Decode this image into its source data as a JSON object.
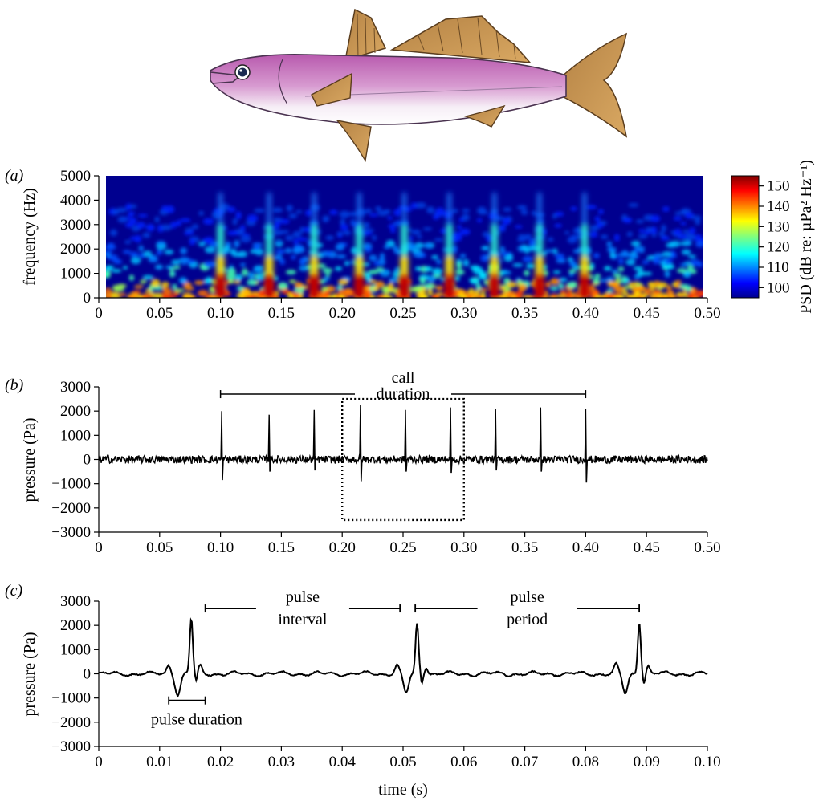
{
  "chart_data": [
    {
      "panel": "(a)",
      "type": "heatmap",
      "ylabel": "frequency (Hz)",
      "xlim": [
        0,
        0.5
      ],
      "ylim": [
        0,
        5000
      ],
      "x_ticks": [
        "0",
        "0.05",
        "0.10",
        "0.15",
        "0.20",
        "0.25",
        "0.30",
        "0.35",
        "0.40",
        "0.45",
        "0.50"
      ],
      "y_ticks": [
        "0",
        "1000",
        "2000",
        "3000",
        "4000",
        "5000"
      ],
      "pulse_times": [
        0.1,
        0.14,
        0.177,
        0.214,
        0.251,
        0.288,
        0.325,
        0.362,
        0.399
      ],
      "colorbar": {
        "label": "PSD (dB re: µPa² Hz⁻¹)",
        "range": [
          95,
          155
        ],
        "ticks": [
          "100",
          "110",
          "120",
          "130",
          "140",
          "150"
        ]
      }
    },
    {
      "panel": "(b)",
      "type": "line",
      "ylabel": "pressure (Pa)",
      "xlim": [
        0,
        0.5
      ],
      "ylim": [
        -3000,
        3000
      ],
      "x_ticks": [
        "0",
        "0.05",
        "0.10",
        "0.15",
        "0.20",
        "0.25",
        "0.30",
        "0.35",
        "0.40",
        "0.45",
        "0.50"
      ],
      "y_ticks": [
        "3000",
        "2000",
        "1000",
        "0",
        "−1000",
        "−2000",
        "−3000"
      ],
      "pulses": [
        {
          "t": 0.101,
          "peak": 2000,
          "trough": -850
        },
        {
          "t": 0.14,
          "peak": 1850,
          "trough": -500
        },
        {
          "t": 0.177,
          "peak": 2050,
          "trough": -450
        },
        {
          "t": 0.215,
          "peak": 2250,
          "trough": -900
        },
        {
          "t": 0.252,
          "peak": 2050,
          "trough": -500
        },
        {
          "t": 0.289,
          "peak": 2150,
          "trough": -550
        },
        {
          "t": 0.326,
          "peak": 2100,
          "trough": -450
        },
        {
          "t": 0.363,
          "peak": 2150,
          "trough": -500
        },
        {
          "t": 0.4,
          "peak": 2100,
          "trough": -950
        }
      ],
      "call_duration": {
        "label_line1": "call",
        "label_line2": "duration",
        "start": 0.1,
        "end": 0.4,
        "y": 2700
      },
      "zoom_box": {
        "x0": 0.2,
        "x1": 0.3,
        "y0": -2500,
        "y1": 2500
      }
    },
    {
      "panel": "(c)",
      "type": "line",
      "xlabel": "time (s)",
      "ylabel": "pressure (Pa)",
      "xlim": [
        0,
        0.1
      ],
      "ylim": [
        -3000,
        3000
      ],
      "x_ticks": [
        "0",
        "0.01",
        "0.02",
        "0.03",
        "0.04",
        "0.05",
        "0.06",
        "0.07",
        "0.08",
        "0.09",
        "0.10"
      ],
      "y_ticks": [
        "3000",
        "2000",
        "1000",
        "0",
        "−1000",
        "−2000",
        "−3000"
      ],
      "pulses": [
        {
          "t": 0.0152,
          "peak": 2250,
          "trough": -850,
          "trough_t": 0.013
        },
        {
          "t": 0.0523,
          "peak": 2050,
          "trough": -800,
          "trough_t": 0.0505
        },
        {
          "t": 0.0888,
          "peak": 2200,
          "trough": -800,
          "trough_t": 0.0865
        }
      ],
      "annotations": {
        "pulse_interval": {
          "line1": "pulse",
          "line2": "interval",
          "start": 0.0175,
          "end": 0.0495,
          "y": 2700
        },
        "pulse_period": {
          "line1": "pulse",
          "line2": "period",
          "start": 0.052,
          "end": 0.0888,
          "y": 2700
        },
        "pulse_duration": {
          "label": "pulse duration",
          "start": 0.0115,
          "end": 0.0175,
          "y": -1100
        }
      }
    }
  ],
  "colors": {
    "fish_body_top": "#c05fb2",
    "fish_body_bottom": "#ffffff",
    "fish_fin": "#c9954b",
    "heatmap_background": "#00008f"
  }
}
